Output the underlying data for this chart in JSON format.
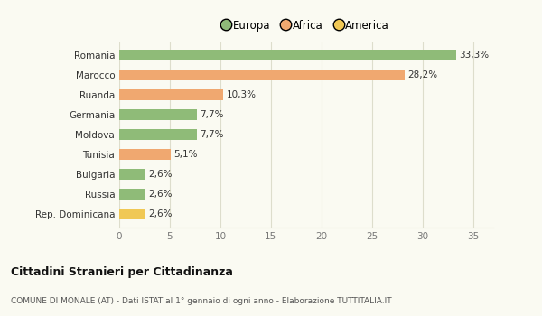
{
  "categories": [
    "Rep. Dominicana",
    "Russia",
    "Bulgaria",
    "Tunisia",
    "Moldova",
    "Germania",
    "Ruanda",
    "Marocco",
    "Romania"
  ],
  "values": [
    2.6,
    2.6,
    2.6,
    5.1,
    7.7,
    7.7,
    10.3,
    28.2,
    33.3
  ],
  "labels": [
    "2,6%",
    "2,6%",
    "2,6%",
    "5,1%",
    "7,7%",
    "7,7%",
    "10,3%",
    "28,2%",
    "33,3%"
  ],
  "colors": [
    "#f0c855",
    "#8fbb78",
    "#8fbb78",
    "#f0a870",
    "#8fbb78",
    "#8fbb78",
    "#f0a870",
    "#f0a870",
    "#8fbb78"
  ],
  "legend": [
    {
      "label": "Europa",
      "color": "#8fbb78"
    },
    {
      "label": "Africa",
      "color": "#f0a870"
    },
    {
      "label": "America",
      "color": "#f0c855"
    }
  ],
  "xlim": [
    0,
    37
  ],
  "xticks": [
    0,
    5,
    10,
    15,
    20,
    25,
    30,
    35
  ],
  "title": "Cittadini Stranieri per Cittadinanza",
  "subtitle": "COMUNE DI MONALE (AT) - Dati ISTAT al 1° gennaio di ogni anno - Elaborazione TUTTITALIA.IT",
  "bg_color": "#fafaf2",
  "grid_color": "#ddddcc",
  "bar_height": 0.55
}
